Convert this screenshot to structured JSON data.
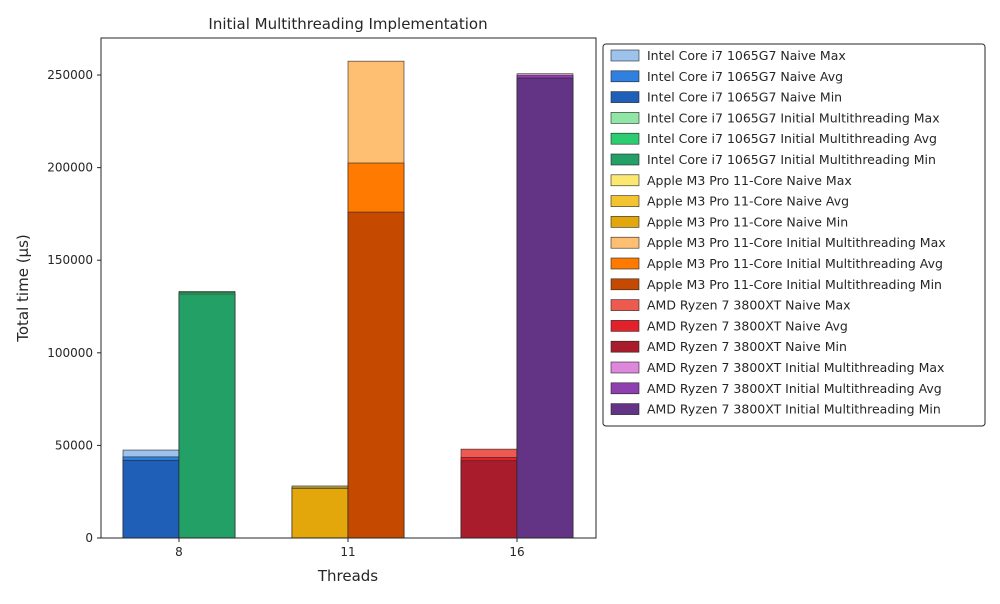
{
  "chart_data": {
    "type": "bar",
    "title": "Initial Multithreading Implementation",
    "xlabel": "Threads",
    "ylabel": "Total time (μs)",
    "categories": [
      "8",
      "11",
      "16"
    ],
    "ylim": [
      0,
      270000
    ],
    "yticks": [
      0,
      50000,
      100000,
      150000,
      200000,
      250000
    ],
    "ytick_labels": [
      "0",
      "50000",
      "100000",
      "150000",
      "200000",
      "250000"
    ],
    "grid": false,
    "legend_position": "outside-right",
    "bar_groups": [
      {
        "category": "8",
        "slot": "left",
        "series": [
          {
            "name": "Intel Core i7 1065G7 Naive Max",
            "value": 47500,
            "color": "#9dc3ec"
          },
          {
            "name": "Intel Core i7 1065G7 Naive Avg",
            "value": 43800,
            "color": "#2f80e0"
          },
          {
            "name": "Intel Core i7 1065G7 Naive Min",
            "value": 42000,
            "color": "#1f5fb8"
          }
        ]
      },
      {
        "category": "8",
        "slot": "right",
        "series": [
          {
            "name": "Intel Core i7 1065G7 Initial Multithreading Max",
            "value": 133200,
            "color": "#8fe6a5"
          },
          {
            "name": "Intel Core i7 1065G7 Initial Multithreading Avg",
            "value": 132600,
            "color": "#2ecc71"
          },
          {
            "name": "Intel Core i7 1065G7 Initial Multithreading Min",
            "value": 131800,
            "color": "#22a065"
          }
        ]
      },
      {
        "category": "11",
        "slot": "left",
        "series": [
          {
            "name": "Apple M3 Pro 11-Core Naive Max",
            "value": 28100,
            "color": "#fbe870"
          },
          {
            "name": "Apple M3 Pro 11-Core Naive Avg",
            "value": 27500,
            "color": "#f4c430"
          },
          {
            "name": "Apple M3 Pro 11-Core Naive Min",
            "value": 26800,
            "color": "#e3a70c"
          }
        ]
      },
      {
        "category": "11",
        "slot": "right",
        "series": [
          {
            "name": "Apple M3 Pro 11-Core Initial Multithreading Max",
            "value": 257500,
            "color": "#ffbf73"
          },
          {
            "name": "Apple M3 Pro 11-Core Initial Multithreading Avg",
            "value": 202500,
            "color": "#ff7a00"
          },
          {
            "name": "Apple M3 Pro 11-Core Initial Multithreading Min",
            "value": 176000,
            "color": "#c54a00"
          }
        ]
      },
      {
        "category": "16",
        "slot": "left",
        "series": [
          {
            "name": "AMD Ryzen 7 3800XT Naive Max",
            "value": 48000,
            "color": "#ee5a4f"
          },
          {
            "name": "AMD Ryzen 7 3800XT Naive Avg",
            "value": 43500,
            "color": "#e3212b"
          },
          {
            "name": "AMD Ryzen 7 3800XT Naive Min",
            "value": 41700,
            "color": "#a81c2c"
          }
        ]
      },
      {
        "category": "16",
        "slot": "right",
        "series": [
          {
            "name": "AMD Ryzen 7 3800XT Initial Multithreading Max",
            "value": 250700,
            "color": "#dd88dd"
          },
          {
            "name": "AMD Ryzen 7 3800XT Initial Multithreading Avg",
            "value": 249700,
            "color": "#8e3fb0"
          },
          {
            "name": "AMD Ryzen 7 3800XT Initial Multithreading Min",
            "value": 248400,
            "color": "#633385"
          }
        ]
      }
    ],
    "legend_order": [
      "Intel Core i7 1065G7 Naive Max",
      "Intel Core i7 1065G7 Naive Avg",
      "Intel Core i7 1065G7 Naive Min",
      "Intel Core i7 1065G7 Initial Multithreading Max",
      "Intel Core i7 1065G7 Initial Multithreading Avg",
      "Intel Core i7 1065G7 Initial Multithreading Min",
      "Apple M3 Pro 11-Core Naive Max",
      "Apple M3 Pro 11-Core Naive Avg",
      "Apple M3 Pro 11-Core Naive Min",
      "Apple M3 Pro 11-Core Initial Multithreading Max",
      "Apple M3 Pro 11-Core Initial Multithreading Avg",
      "Apple M3 Pro 11-Core Initial Multithreading Min",
      "AMD Ryzen 7 3800XT Naive Max",
      "AMD Ryzen 7 3800XT Naive Avg",
      "AMD Ryzen 7 3800XT Naive Min",
      "AMD Ryzen 7 3800XT Initial Multithreading Max",
      "AMD Ryzen 7 3800XT Initial Multithreading Avg",
      "AMD Ryzen 7 3800XT Initial Multithreading Min"
    ]
  }
}
